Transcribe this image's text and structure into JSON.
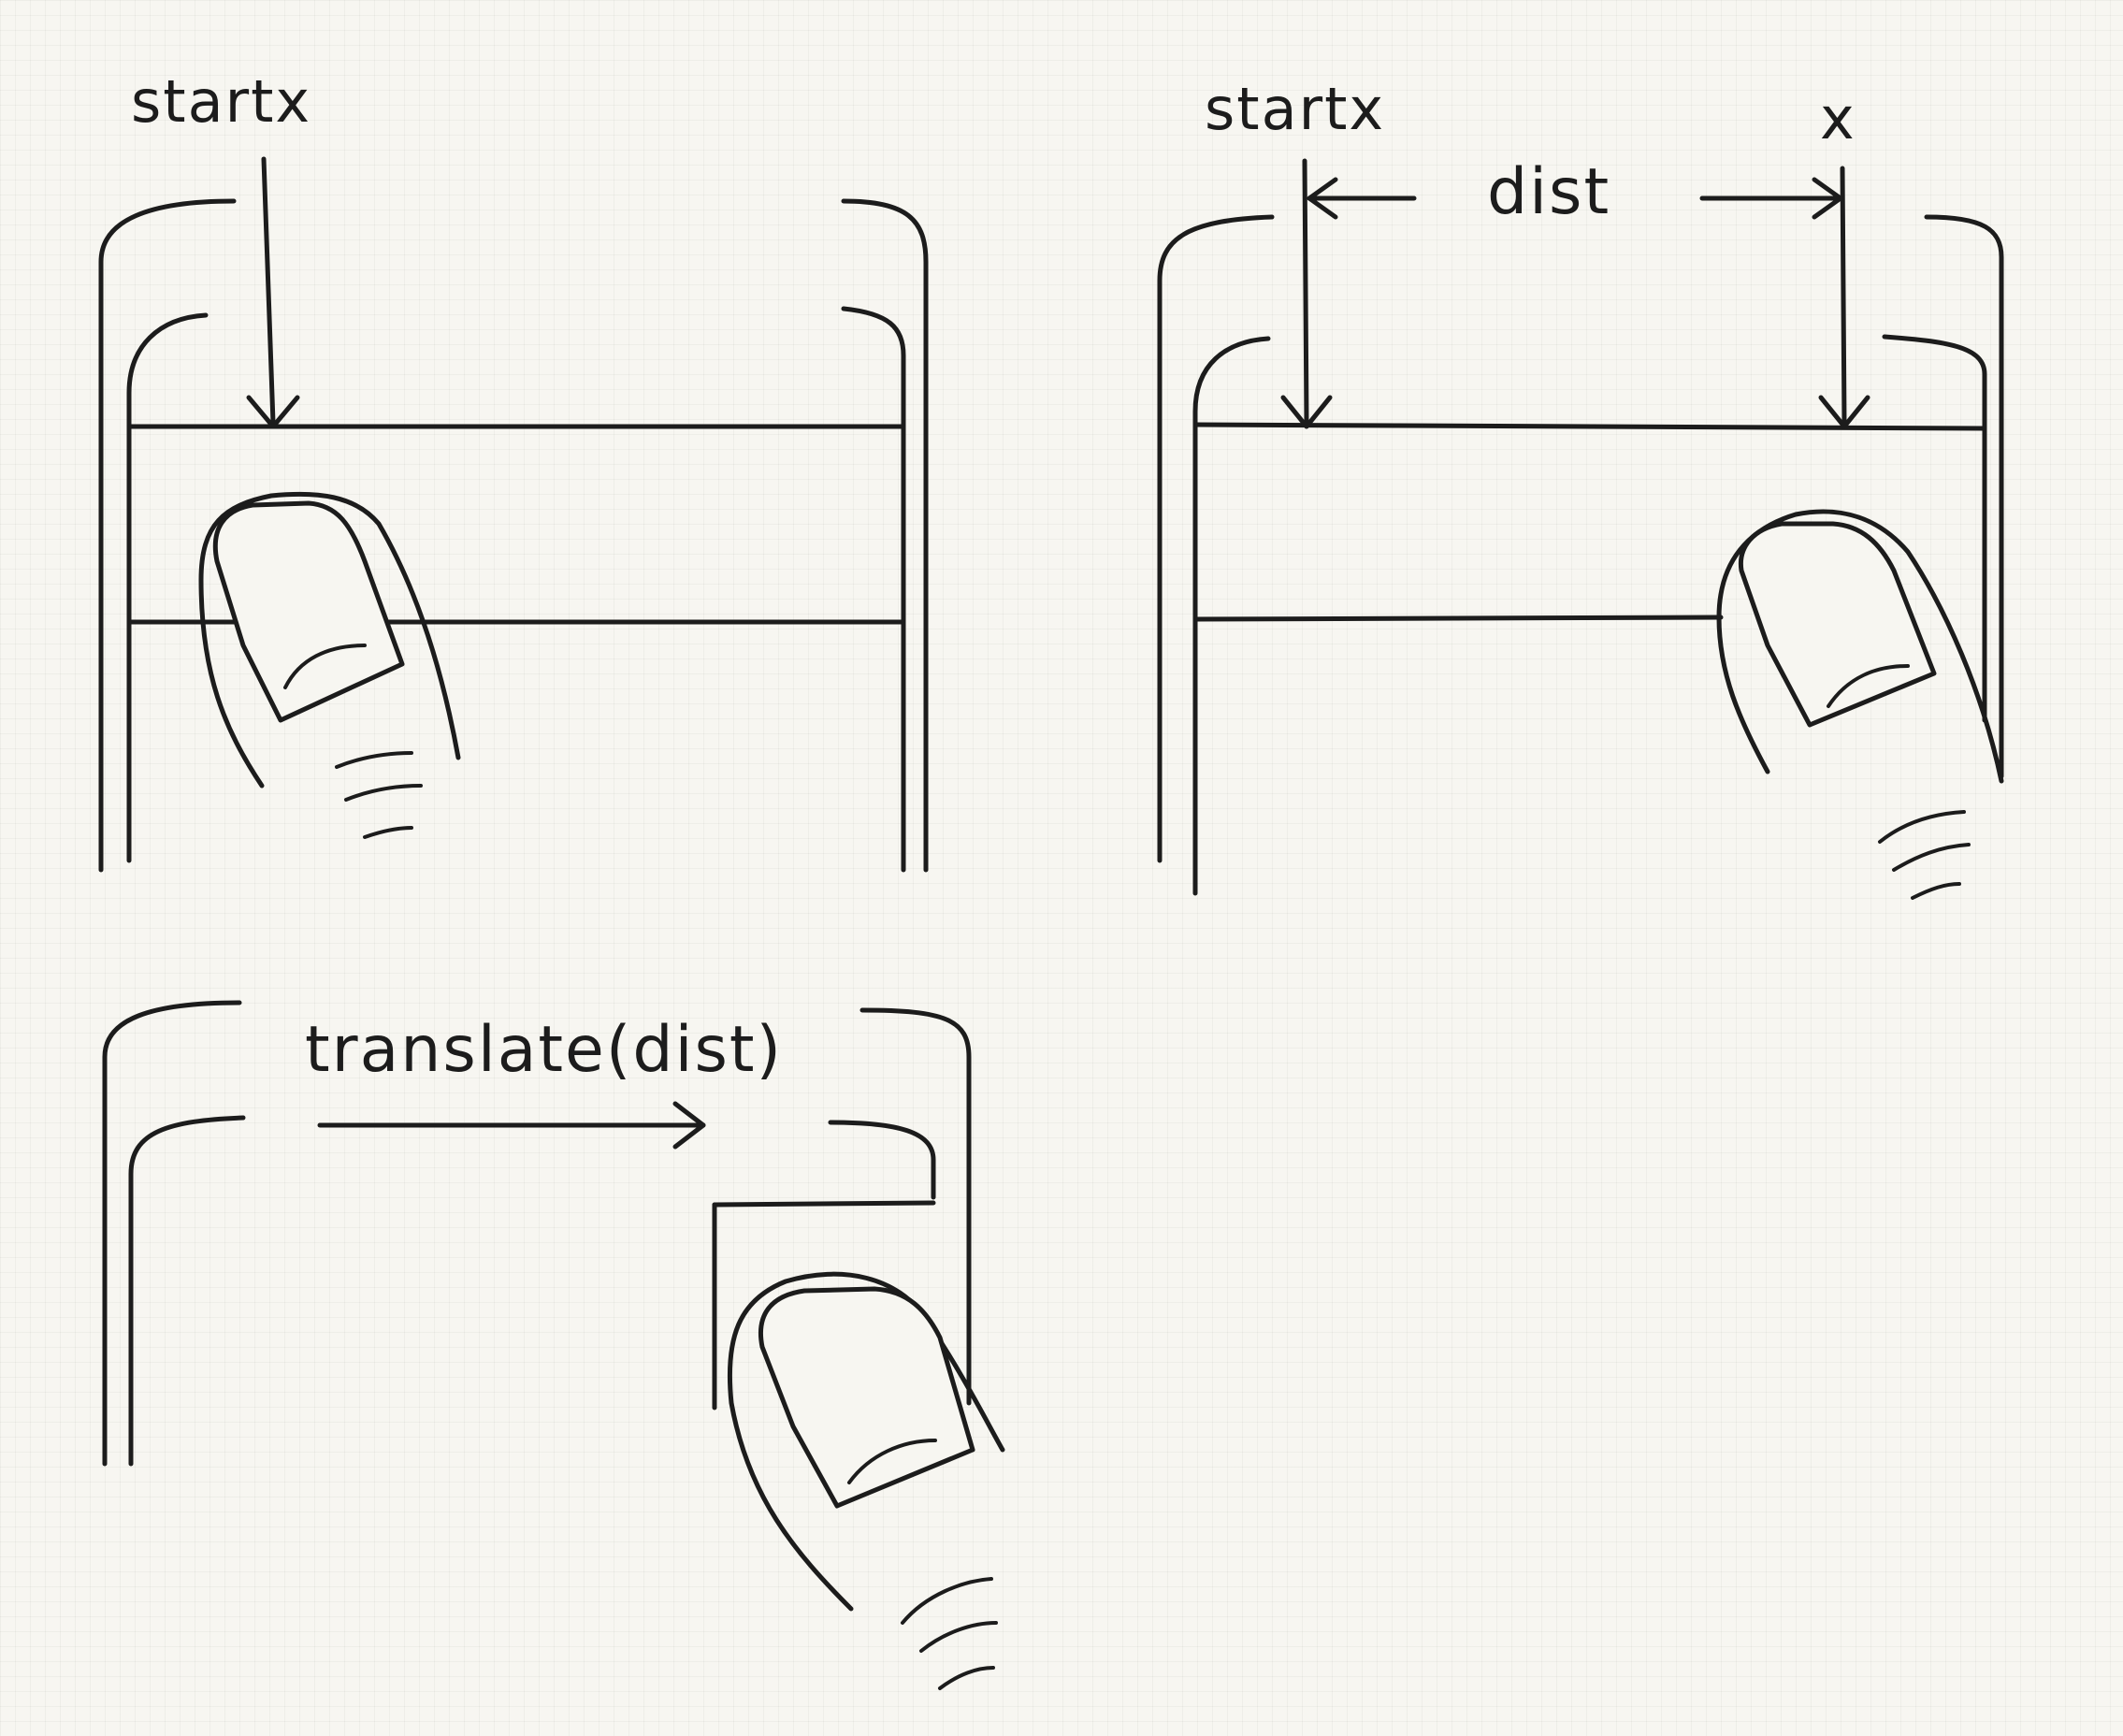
{
  "panels": [
    {
      "id": "touch-start",
      "labels": {
        "start": "startx"
      }
    },
    {
      "id": "touch-move",
      "labels": {
        "start": "startx",
        "current": "x",
        "distance": "dist"
      }
    },
    {
      "id": "translate",
      "labels": {
        "action": "translate(dist)"
      }
    }
  ]
}
